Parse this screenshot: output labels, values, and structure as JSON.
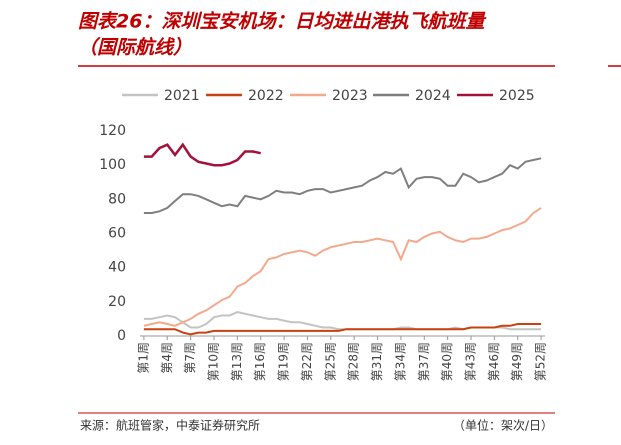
{
  "chart_data": {
    "type": "line",
    "title": [
      "图表26：深圳宝安机场：日均进出港执飞航班量",
      "（国际航线）"
    ],
    "source": "来源：航班管家，中泰证券研究所",
    "unit": "（单位：架次/日）",
    "categories": [
      "第1周",
      null,
      null,
      "第4周",
      null,
      null,
      "第7周",
      null,
      null,
      "第10周",
      null,
      null,
      "第13周",
      null,
      null,
      "第16周",
      null,
      null,
      "第19周",
      null,
      null,
      "第22周",
      null,
      null,
      "第25周",
      null,
      null,
      "第28周",
      null,
      null,
      "第31周",
      null,
      null,
      "第34周",
      null,
      null,
      "第37周",
      null,
      null,
      "第40周",
      null,
      null,
      "第43周",
      null,
      null,
      "第46周",
      null,
      null,
      "第49周",
      null,
      null,
      "第52周"
    ],
    "ylim": [
      0,
      120
    ],
    "yticks": [
      0,
      20,
      40,
      60,
      80,
      100,
      120
    ],
    "series": [
      {
        "name": "2021",
        "color": "#c3c3c3",
        "values": [
          10,
          10,
          11,
          12,
          11,
          8,
          5,
          5,
          7,
          11,
          12,
          12,
          14,
          13,
          12,
          11,
          10,
          10,
          9,
          8,
          8,
          7,
          6,
          5,
          5,
          4,
          4,
          4,
          4,
          4,
          4,
          4,
          4,
          5,
          5,
          4,
          4,
          4,
          4,
          4,
          5,
          4,
          5,
          5,
          5,
          5,
          5,
          4,
          4,
          4,
          4,
          4
        ]
      },
      {
        "name": "2022",
        "color": "#c8410f",
        "values": [
          4,
          4,
          4,
          4,
          4,
          2,
          1,
          2,
          2,
          3,
          3,
          3,
          3,
          3,
          3,
          3,
          3,
          3,
          3,
          3,
          3,
          3,
          3,
          3,
          3,
          3,
          4,
          4,
          4,
          4,
          4,
          4,
          4,
          4,
          4,
          4,
          4,
          4,
          4,
          4,
          4,
          4,
          5,
          5,
          5,
          5,
          6,
          6,
          7,
          7,
          7,
          7
        ]
      },
      {
        "name": "2023",
        "color": "#f4a88c",
        "values": [
          6,
          7,
          8,
          7,
          6,
          8,
          10,
          13,
          15,
          18,
          21,
          23,
          29,
          31,
          35,
          38,
          45,
          46,
          48,
          49,
          50,
          49,
          47,
          50,
          52,
          53,
          54,
          55,
          55,
          56,
          57,
          56,
          55,
          45,
          56,
          55,
          58,
          60,
          61,
          58,
          56,
          55,
          57,
          57,
          58,
          60,
          62,
          63,
          65,
          67,
          72,
          75
        ]
      },
      {
        "name": "2024",
        "color": "#7f7f7f",
        "values": [
          72,
          72,
          73,
          75,
          79,
          83,
          83,
          82,
          80,
          78,
          76,
          77,
          76,
          82,
          81,
          80,
          82,
          85,
          84,
          84,
          83,
          85,
          86,
          86,
          84,
          85,
          86,
          87,
          88,
          91,
          93,
          96,
          95,
          98,
          87,
          92,
          93,
          93,
          92,
          88,
          88,
          95,
          93,
          90,
          91,
          93,
          95,
          100,
          98,
          102,
          103,
          104
        ]
      },
      {
        "name": "2025",
        "color": "#a3123b",
        "values": [
          105,
          105,
          110,
          112,
          106,
          112,
          105,
          102,
          101,
          100,
          100,
          101,
          103,
          108,
          108,
          107,
          null,
          null,
          null,
          null,
          null,
          null,
          null,
          null,
          null,
          null,
          null,
          null,
          null,
          null,
          null,
          null,
          null,
          null,
          null,
          null,
          null,
          null,
          null,
          null,
          null,
          null,
          null,
          null,
          null,
          null,
          null,
          null,
          null,
          null,
          null,
          null
        ]
      }
    ]
  }
}
